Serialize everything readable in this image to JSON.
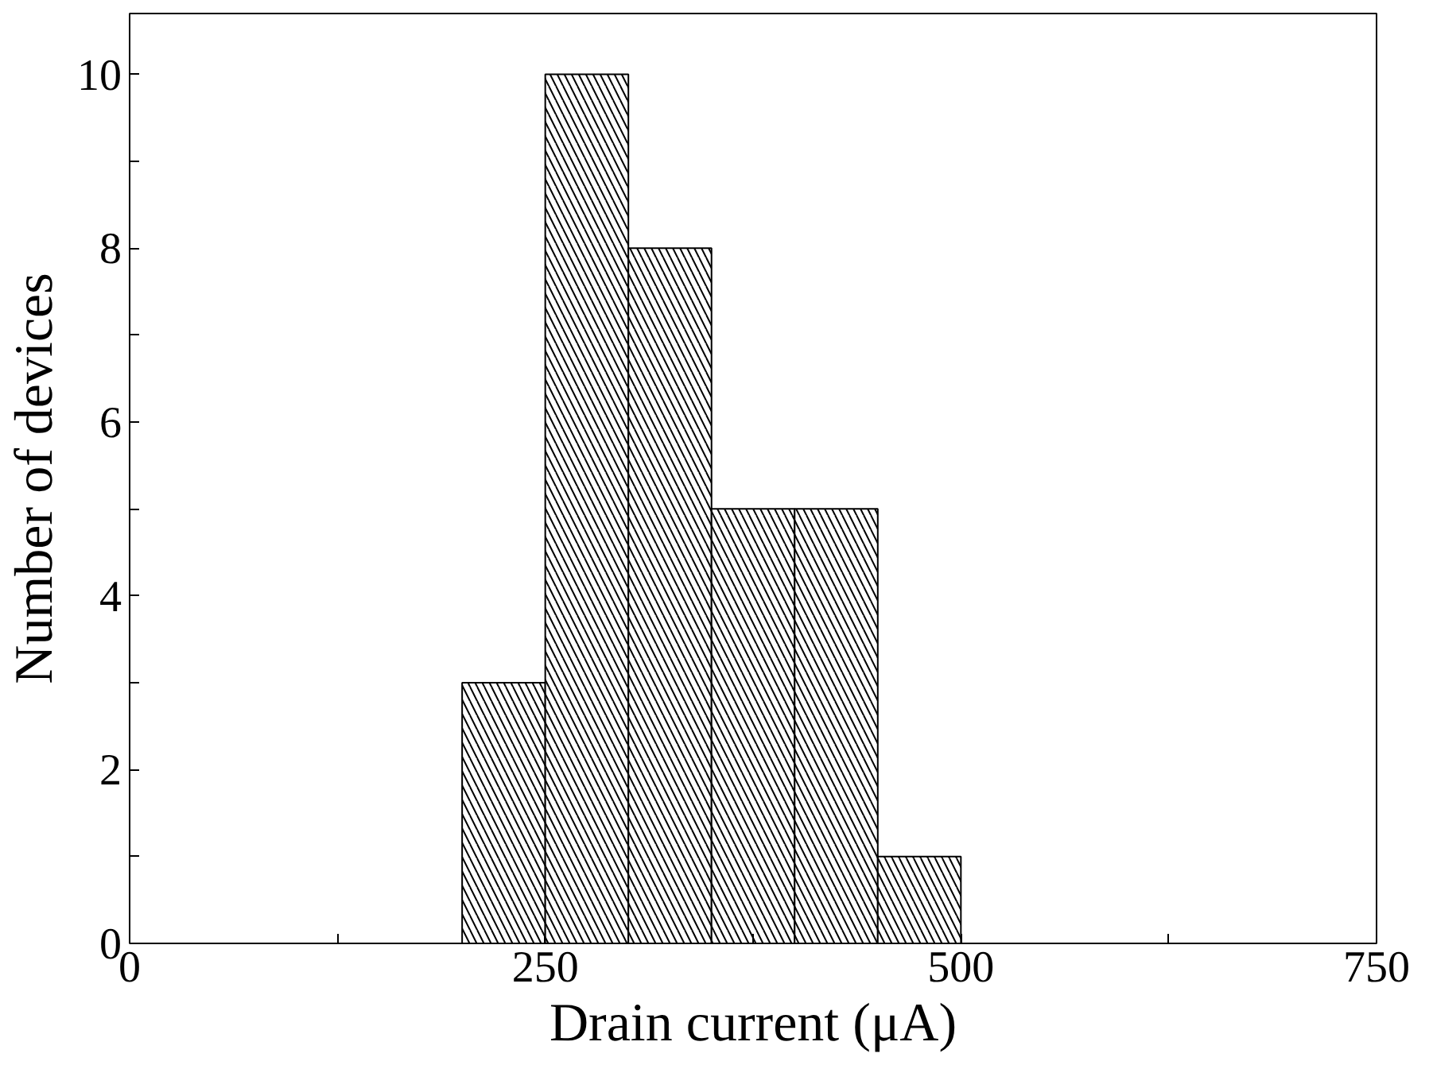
{
  "chart_data": {
    "type": "histogram",
    "xlabel": "Drain current (μA)",
    "ylabel": "Number of devices",
    "bins": [
      200,
      250,
      300,
      350,
      400,
      450,
      500
    ],
    "values": [
      3,
      10,
      8,
      5,
      5,
      1
    ],
    "color": "#000000",
    "xlim": [
      0,
      750
    ],
    "ylim": [
      0,
      10.7
    ],
    "xticks": [
      0,
      {
        "value": 125,
        "label": null
      },
      250,
      {
        "value": 375,
        "label": null
      },
      500,
      {
        "value": 625,
        "label": null
      },
      750
    ],
    "yticks": [
      0,
      {
        "value": 1,
        "label": null
      },
      2,
      {
        "value": 3,
        "label": null
      },
      4,
      {
        "value": 5,
        "label": null
      },
      6,
      {
        "value": 7,
        "label": null
      },
      8,
      {
        "value": 9,
        "label": null
      },
      10
    ],
    "grid": false
  }
}
